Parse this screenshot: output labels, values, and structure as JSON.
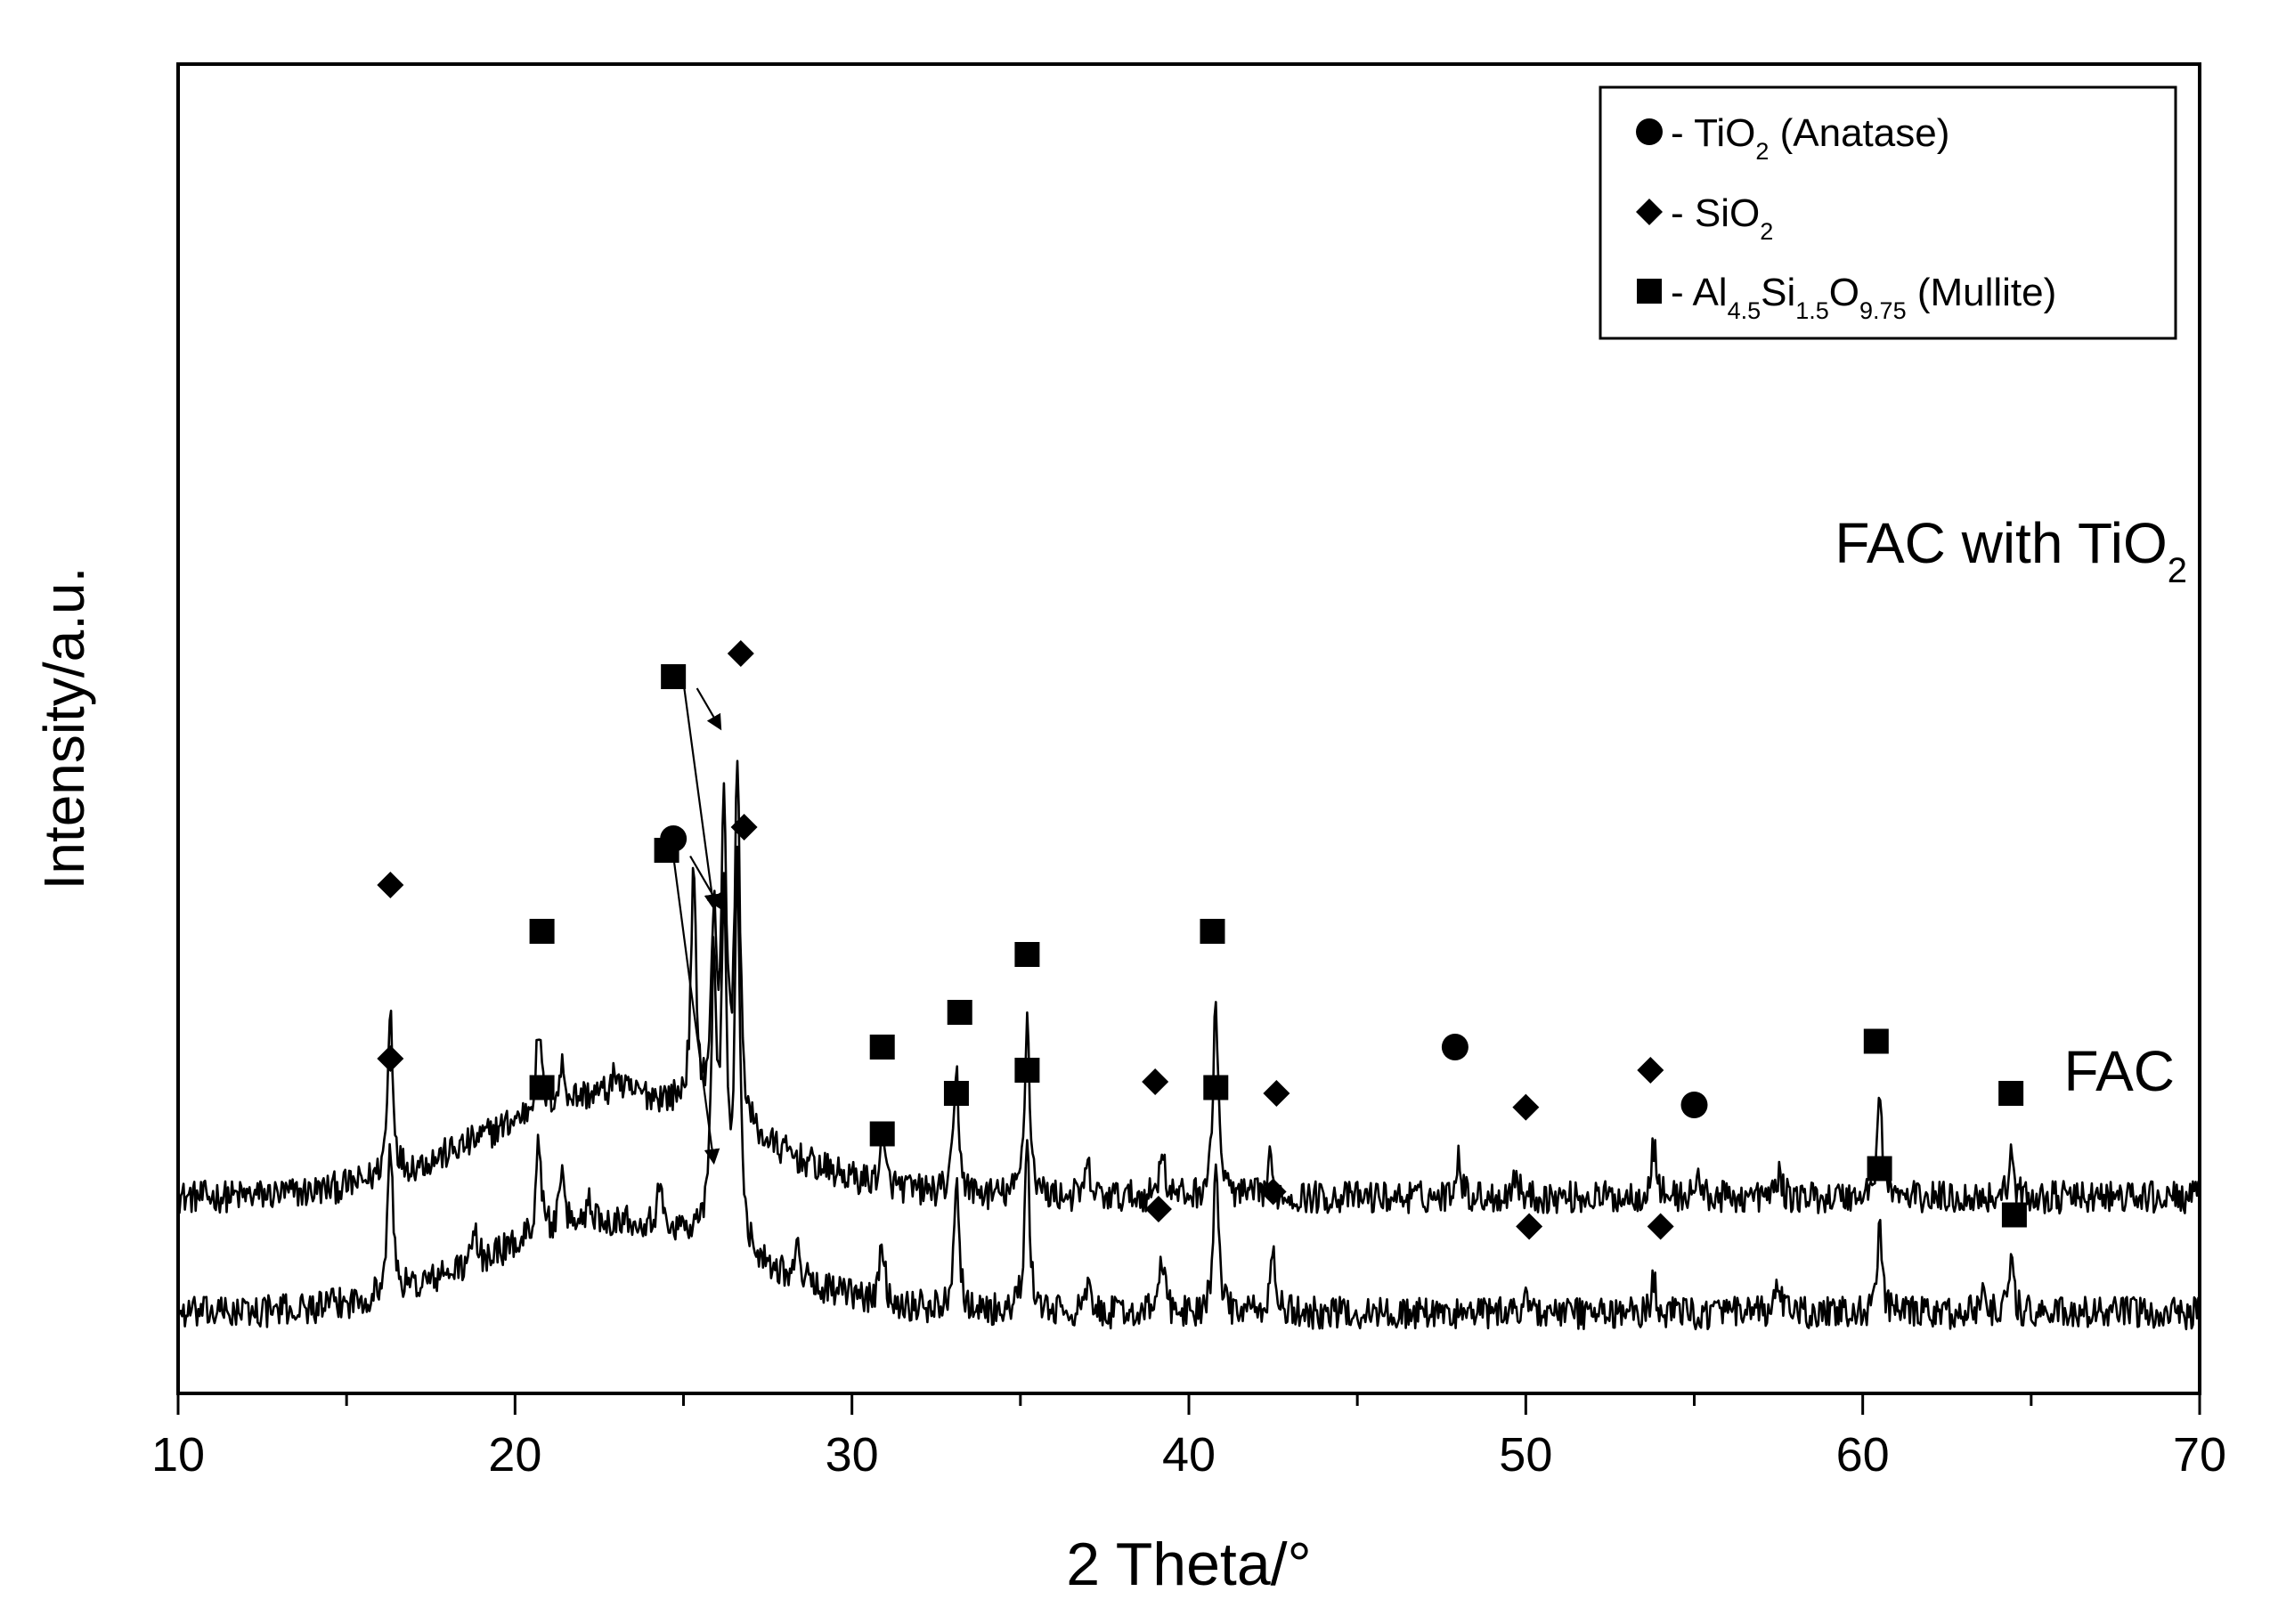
{
  "chart_data": {
    "type": "line",
    "xlabel": "2 Theta/°",
    "ylabel": "Intensity/a.u.",
    "xlim": [
      10,
      70
    ],
    "xticks": [
      10,
      20,
      30,
      40,
      50,
      60,
      70
    ],
    "grid": false,
    "legend_position": "top-right",
    "legend": [
      {
        "marker": "circle",
        "prefix": " - ",
        "parts": [
          [
            "TiO",
            "n"
          ],
          [
            "2",
            "sub"
          ],
          [
            " (Anatase)",
            "n"
          ]
        ]
      },
      {
        "marker": "diamond",
        "prefix": " - ",
        "parts": [
          [
            "SiO",
            "n"
          ],
          [
            "2",
            "sub"
          ]
        ]
      },
      {
        "marker": "square",
        "prefix": " - ",
        "parts": [
          [
            "Al",
            "n"
          ],
          [
            "4.5",
            "sub"
          ],
          [
            "Si",
            "n"
          ],
          [
            "1.5",
            "sub"
          ],
          [
            "O",
            "n"
          ],
          [
            "9.75",
            "sub"
          ],
          [
            " (Mullite)",
            "n"
          ]
        ]
      }
    ],
    "series": [
      {
        "name": "FAC with TiO2",
        "label_parts": [
          [
            "FAC with TiO",
            "n"
          ],
          [
            "2",
            "sub"
          ]
        ],
        "baseline": 1.0,
        "hump": {
          "center": 23,
          "width": 3.8,
          "height": 0.9
        },
        "noise": 0.14,
        "peaks": [
          [
            16.3,
            1.45
          ],
          [
            20.7,
            0.7
          ],
          [
            21.4,
            0.3
          ],
          [
            23.0,
            0.2
          ],
          [
            25.3,
            2.0
          ],
          [
            25.9,
            1.6
          ],
          [
            26.2,
            2.7
          ],
          [
            26.6,
            3.1
          ],
          [
            30.9,
            0.4
          ],
          [
            33.1,
            1.05
          ],
          [
            35.2,
            1.55
          ],
          [
            37.0,
            0.25
          ],
          [
            39.2,
            0.45
          ],
          [
            40.8,
            1.7
          ],
          [
            42.4,
            0.3
          ],
          [
            48.0,
            0.38
          ],
          [
            49.7,
            0.22
          ],
          [
            53.8,
            0.45
          ],
          [
            55.1,
            0.18
          ],
          [
            57.5,
            0.2
          ],
          [
            60.5,
            0.85
          ],
          [
            64.4,
            0.35
          ]
        ],
        "markers": [
          {
            "type": "diamond",
            "x": 16.3,
            "y": 3.7
          },
          {
            "type": "square",
            "x": 20.8,
            "y": 3.3
          },
          {
            "type": "circle",
            "x": 24.7,
            "y": 4.1
          },
          {
            "type": "square",
            "x": 24.7,
            "y": 5.5
          },
          {
            "type": "diamond",
            "x": 26.7,
            "y": 5.7
          },
          {
            "type": "square",
            "x": 30.9,
            "y": 2.3
          },
          {
            "type": "square",
            "x": 33.2,
            "y": 2.6
          },
          {
            "type": "square",
            "x": 35.2,
            "y": 3.1
          },
          {
            "type": "diamond",
            "x": 39.0,
            "y": 2.0
          },
          {
            "type": "square",
            "x": 40.7,
            "y": 3.3
          },
          {
            "type": "diamond",
            "x": 42.6,
            "y": 1.9
          },
          {
            "type": "circle",
            "x": 47.9,
            "y": 2.3
          },
          {
            "type": "diamond",
            "x": 50.0,
            "y": 1.78
          },
          {
            "type": "diamond",
            "x": 53.7,
            "y": 2.1
          },
          {
            "type": "circle",
            "x": 55.0,
            "y": 1.8
          },
          {
            "type": "square",
            "x": 60.4,
            "y": 2.35
          },
          {
            "type": "square",
            "x": 64.4,
            "y": 1.9
          }
        ],
        "arrows": [
          {
            "from": [
              25.0,
              5.45
            ],
            "to": [
              25.9,
              3.5
            ]
          },
          {
            "from": [
              25.4,
              5.4
            ],
            "to": [
              26.1,
              5.05
            ]
          }
        ]
      },
      {
        "name": "FAC",
        "label_parts": [
          [
            "FAC",
            "n"
          ]
        ],
        "baseline": 0.0,
        "hump": {
          "center": 23,
          "width": 3.8,
          "height": 0.8
        },
        "noise": 0.14,
        "peaks": [
          [
            16.3,
            1.3
          ],
          [
            18.8,
            0.25
          ],
          [
            20.7,
            0.85
          ],
          [
            21.4,
            0.4
          ],
          [
            22.2,
            0.2
          ],
          [
            24.3,
            0.3
          ],
          [
            25.9,
            2.4
          ],
          [
            26.2,
            2.9
          ],
          [
            26.6,
            3.2
          ],
          [
            28.4,
            0.25
          ],
          [
            30.9,
            0.5
          ],
          [
            33.1,
            1.2
          ],
          [
            35.2,
            1.4
          ],
          [
            37.0,
            0.2
          ],
          [
            39.2,
            0.5
          ],
          [
            40.8,
            1.25
          ],
          [
            42.5,
            0.5
          ],
          [
            50.0,
            0.22
          ],
          [
            53.8,
            0.28
          ],
          [
            57.5,
            0.25
          ],
          [
            60.5,
            0.7
          ],
          [
            63.6,
            0.2
          ],
          [
            64.4,
            0.45
          ]
        ],
        "markers": [
          {
            "type": "diamond",
            "x": 16.3,
            "y": 2.2
          },
          {
            "type": "square",
            "x": 20.8,
            "y": 1.95
          },
          {
            "type": "square",
            "x": 24.5,
            "y": 4.0
          },
          {
            "type": "diamond",
            "x": 26.8,
            "y": 4.2
          },
          {
            "type": "square",
            "x": 30.9,
            "y": 1.55
          },
          {
            "type": "square",
            "x": 33.1,
            "y": 1.9
          },
          {
            "type": "square",
            "x": 35.2,
            "y": 2.1
          },
          {
            "type": "diamond",
            "x": 39.1,
            "y": 0.9
          },
          {
            "type": "square",
            "x": 40.8,
            "y": 1.95
          },
          {
            "type": "diamond",
            "x": 42.5,
            "y": 1.05
          },
          {
            "type": "diamond",
            "x": 50.1,
            "y": 0.75
          },
          {
            "type": "diamond",
            "x": 54.0,
            "y": 0.75
          },
          {
            "type": "square",
            "x": 60.5,
            "y": 1.25
          },
          {
            "type": "square",
            "x": 64.5,
            "y": 0.85
          }
        ],
        "arrows": [
          {
            "from": [
              24.7,
              3.95
            ],
            "to": [
              25.9,
              1.3
            ]
          },
          {
            "from": [
              25.2,
              3.95
            ],
            "to": [
              26.1,
              3.5
            ]
          }
        ]
      }
    ]
  }
}
